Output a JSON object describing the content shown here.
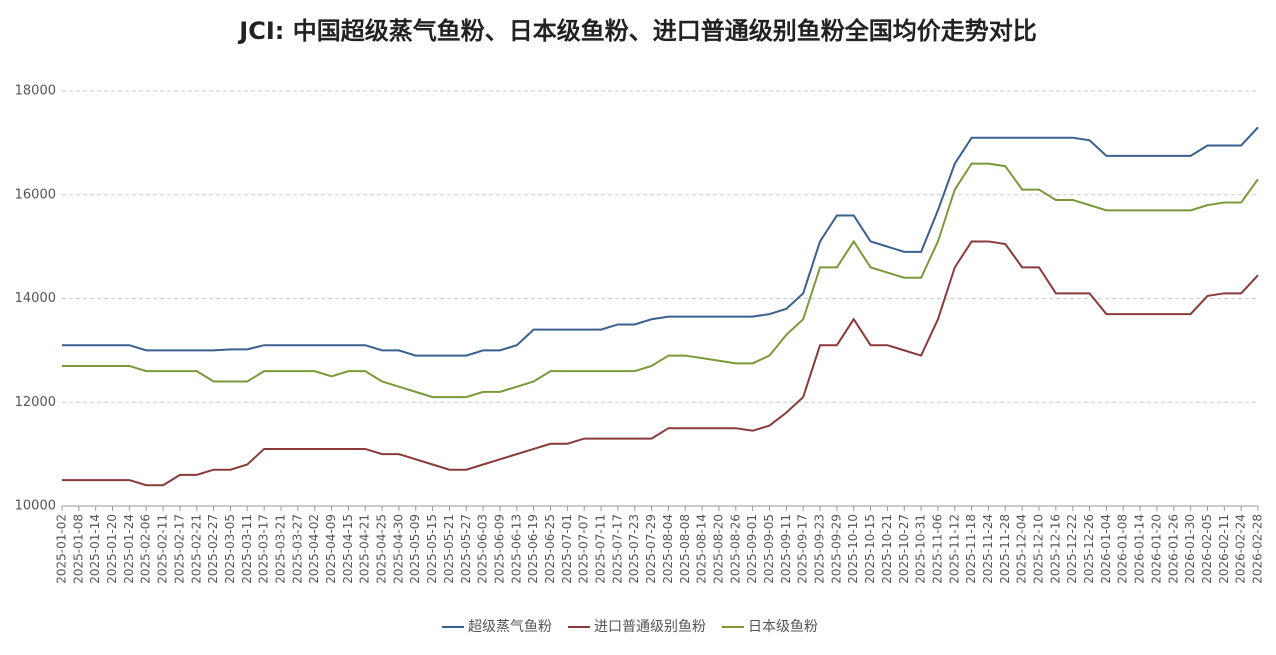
{
  "chart_data": {
    "type": "line",
    "title": "JCI: 中国超级蒸气鱼粉、日本级鱼粉、进口普通级别鱼粉全国均价走势对比",
    "categories": [
      "2025-01-02",
      "2025-01-08",
      "2025-01-14",
      "2025-01-20",
      "2025-01-24",
      "2025-02-06",
      "2025-02-11",
      "2025-02-17",
      "2025-02-21",
      "2025-02-27",
      "2025-03-05",
      "2025-03-11",
      "2025-03-17",
      "2025-03-21",
      "2025-03-27",
      "2025-04-02",
      "2025-04-09",
      "2025-04-15",
      "2025-04-21",
      "2025-04-25",
      "2025-04-30",
      "2025-05-09",
      "2025-05-15",
      "2025-05-21",
      "2025-05-27",
      "2025-06-03",
      "2025-06-09",
      "2025-06-13",
      "2025-06-19",
      "2025-06-25",
      "2025-07-01",
      "2025-07-07",
      "2025-07-11",
      "2025-07-17",
      "2025-07-23",
      "2025-07-29",
      "2025-08-04",
      "2025-08-08",
      "2025-08-14",
      "2025-08-20",
      "2025-08-26",
      "2025-09-01",
      "2025-09-05",
      "2025-09-11",
      "2025-09-17",
      "2025-09-23",
      "2025-09-29",
      "2025-10-10",
      "2025-10-15",
      "2025-10-21",
      "2025-10-27",
      "2025-10-31",
      "2025-11-06",
      "2025-11-12",
      "2025-11-18",
      "2025-11-24",
      "2025-11-28",
      "2025-12-04",
      "2025-12-10",
      "2025-12-16",
      "2025-12-22",
      "2025-12-26",
      "2026-01-04",
      "2026-01-08",
      "2026-01-14",
      "2026-01-20",
      "2026-01-26",
      "2026-01-30",
      "2026-02-05",
      "2026-02-11",
      "2026-02-24",
      "2026-02-28"
    ],
    "series": [
      {
        "name": "超级蒸气鱼粉",
        "color": "#3b5f8f",
        "values": [
          13100,
          13100,
          13100,
          13100,
          13100,
          13000,
          13000,
          13000,
          13000,
          13000,
          13020,
          13020,
          13100,
          13100,
          13100,
          13100,
          13100,
          13100,
          13100,
          13000,
          13000,
          12900,
          12900,
          12900,
          12900,
          13000,
          13000,
          13100,
          13400,
          13400,
          13400,
          13400,
          13400,
          13500,
          13500,
          13600,
          13650,
          13650,
          13650,
          13650,
          13650,
          13650,
          13700,
          13800,
          14100,
          15100,
          15600,
          15600,
          15100,
          15000,
          14900,
          14900,
          15700,
          16600,
          17100,
          17100,
          17100,
          17100,
          17100,
          17100,
          17100,
          17050,
          16750,
          16750,
          16750,
          16750,
          16750,
          16750,
          16950,
          16950,
          16950,
          17300
        ]
      },
      {
        "name": "进口普通级别鱼粉",
        "color": "#8b3a3a",
        "values": [
          10500,
          10500,
          10500,
          10500,
          10500,
          10400,
          10400,
          10600,
          10600,
          10700,
          10700,
          10800,
          11100,
          11100,
          11100,
          11100,
          11100,
          11100,
          11100,
          11000,
          11000,
          10900,
          10800,
          10700,
          10700,
          10800,
          10900,
          11000,
          11100,
          11200,
          11200,
          11300,
          11300,
          11300,
          11300,
          11300,
          11500,
          11500,
          11500,
          11500,
          11500,
          11450,
          11550,
          11800,
          12100,
          13100,
          13100,
          13600,
          13100,
          13100,
          13000,
          12900,
          13600,
          14600,
          15100,
          15100,
          15050,
          14600,
          14600,
          14100,
          14100,
          14100,
          13700,
          13700,
          13700,
          13700,
          13700,
          13700,
          14050,
          14100,
          14100,
          14450
        ]
      },
      {
        "name": "日本级鱼粉",
        "color": "#7a9a3a",
        "values": [
          12700,
          12700,
          12700,
          12700,
          12700,
          12600,
          12600,
          12600,
          12600,
          12400,
          12400,
          12400,
          12600,
          12600,
          12600,
          12600,
          12500,
          12600,
          12600,
          12400,
          12300,
          12200,
          12100,
          12100,
          12100,
          12200,
          12200,
          12300,
          12400,
          12600,
          12600,
          12600,
          12600,
          12600,
          12600,
          12700,
          12900,
          12900,
          12850,
          12800,
          12750,
          12750,
          12900,
          13300,
          13600,
          14600,
          14600,
          15100,
          14600,
          14500,
          14400,
          14400,
          15100,
          16100,
          16600,
          16600,
          16550,
          16100,
          16100,
          15900,
          15900,
          15800,
          15700,
          15700,
          15700,
          15700,
          15700,
          15700,
          15800,
          15850,
          15850,
          16300
        ]
      }
    ],
    "ylim": [
      10000,
      18000
    ],
    "yticks": [
      10000,
      12000,
      14000,
      16000,
      18000
    ],
    "grid": true,
    "legend": "bottom"
  }
}
